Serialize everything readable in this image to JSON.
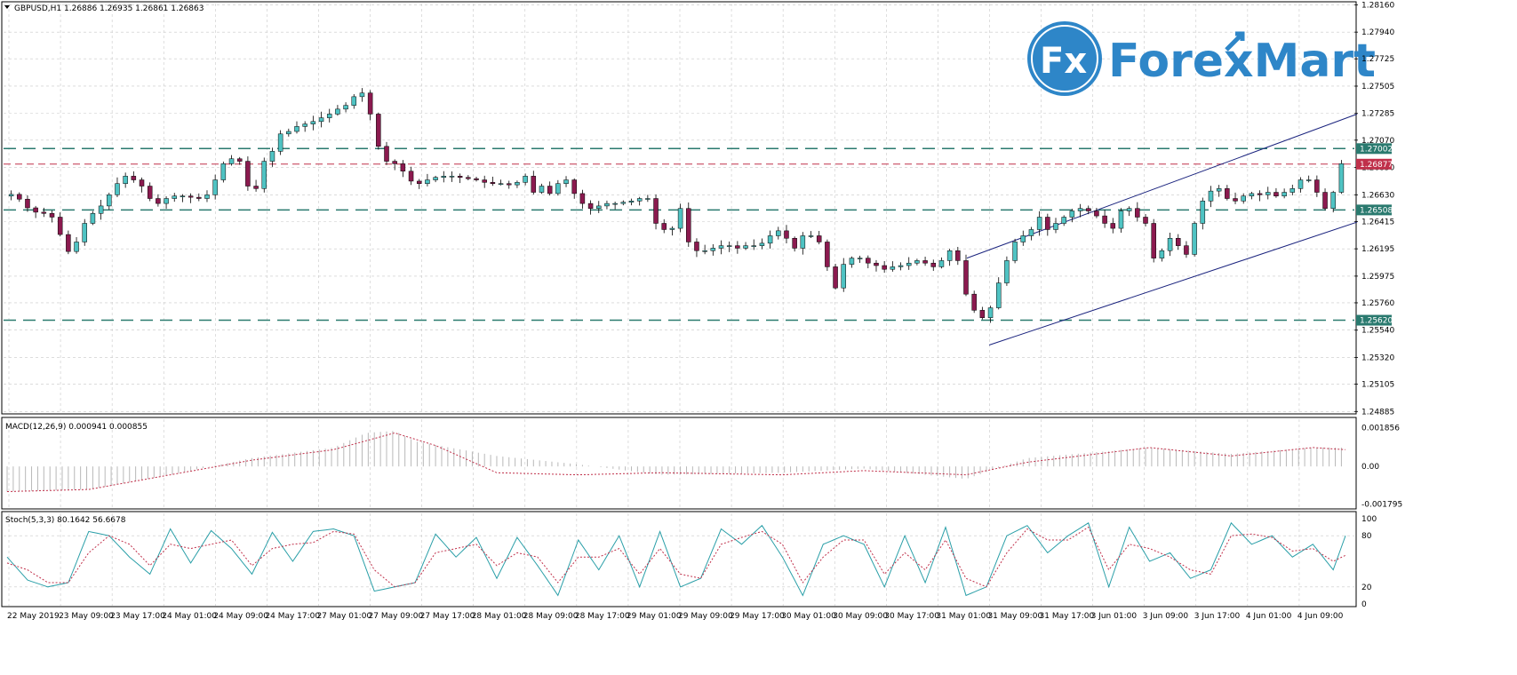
{
  "header": {
    "symbol_info": "GBPUSD,H1  1.26886 1.26935 1.26861 1.26863",
    "collapse_icon": "triangle-down-icon"
  },
  "logo": {
    "mark": "Fx",
    "text": "ForexMart",
    "color": "#2e86c8"
  },
  "colors": {
    "bull": "#4fc3c3",
    "bear": "#8b1a4f",
    "support_line": "#2a7a6f",
    "bid_line": "#c0304a",
    "channel": "#1a237e",
    "grid": "#c8c8c8",
    "macd_signal": "#c0304a",
    "stoch_main": "#2a9fa8",
    "stoch_signal": "#c0304a"
  },
  "price_axis": {
    "ticks": [
      "1.28160",
      "1.27940",
      "1.27725",
      "1.27505",
      "1.27285",
      "1.27070",
      "1.26850",
      "1.26630",
      "1.26415",
      "1.26195",
      "1.25975",
      "1.25760",
      "1.25540",
      "1.25320",
      "1.25105",
      "1.24885"
    ],
    "tags": [
      {
        "label": "1.27002",
        "kind": "support"
      },
      {
        "label": "1.26877",
        "kind": "bid"
      },
      {
        "label": "1.26508",
        "kind": "support"
      },
      {
        "label": "1.25620",
        "kind": "support"
      }
    ]
  },
  "macd_panel": {
    "label": "MACD(12,26,9) 0.000941 0.000855",
    "ticks": [
      "0.001856",
      "0.00",
      "-0.001795"
    ]
  },
  "stoch_panel": {
    "label": "Stoch(5,3,3) 80.1642 56.6678",
    "ticks": [
      "100",
      "80",
      "20",
      "0"
    ]
  },
  "time_axis": [
    "22 May 2019",
    "23 May 09:00",
    "23 May 17:00",
    "24 May 01:00",
    "24 May 09:00",
    "24 May 17:00",
    "27 May 01:00",
    "27 May 09:00",
    "27 May 17:00",
    "28 May 01:00",
    "28 May 09:00",
    "28 May 17:00",
    "29 May 01:00",
    "29 May 09:00",
    "29 May 17:00",
    "30 May 01:00",
    "30 May 09:00",
    "30 May 17:00",
    "31 May 01:00",
    "31 May 09:00",
    "31 May 17:00",
    "3 Jun 01:00",
    "3 Jun 09:00",
    "3 Jun 17:00",
    "4 Jun 01:00",
    "4 Jun 09:00"
  ],
  "chart_data": {
    "type": "candlestick",
    "title": "GBPUSD,H1",
    "ylim": [
      1.2488,
      1.2817
    ],
    "horizontal_levels": [
      1.27002,
      1.26877,
      1.26508,
      1.2562
    ],
    "channel": {
      "upper": [
        [
          1088,
          1.2612
        ],
        [
          1527,
          1.2728
        ]
      ],
      "lower": [
        [
          1113,
          1.2542
        ],
        [
          1527,
          1.2641
        ]
      ]
    },
    "close_path": [
      [
        0,
        1.2662
      ],
      [
        6,
        1.2664
      ],
      [
        10,
        1.2655
      ],
      [
        14,
        1.265
      ],
      [
        18,
        1.2648
      ],
      [
        22,
        1.2648
      ],
      [
        26,
        1.2642
      ],
      [
        30,
        1.262
      ],
      [
        33,
        1.2616
      ],
      [
        36,
        1.2625
      ],
      [
        40,
        1.264
      ],
      [
        44,
        1.2648
      ],
      [
        48,
        1.2654
      ],
      [
        52,
        1.2663
      ],
      [
        56,
        1.2672
      ],
      [
        60,
        1.2678
      ],
      [
        64,
        1.2675
      ],
      [
        68,
        1.267
      ],
      [
        72,
        1.266
      ],
      [
        76,
        1.2656
      ],
      [
        80,
        1.266
      ],
      [
        84,
        1.2662
      ],
      [
        88,
        1.2662
      ],
      [
        92,
        1.2661
      ],
      [
        96,
        1.266
      ],
      [
        100,
        1.2663
      ],
      [
        104,
        1.2675
      ],
      [
        108,
        1.2688
      ],
      [
        112,
        1.2692
      ],
      [
        116,
        1.269
      ],
      [
        120,
        1.267
      ],
      [
        124,
        1.2668
      ],
      [
        128,
        1.269
      ],
      [
        132,
        1.2698
      ],
      [
        136,
        1.2712
      ],
      [
        140,
        1.2714
      ],
      [
        144,
        1.2718
      ],
      [
        148,
        1.272
      ],
      [
        152,
        1.2722
      ],
      [
        156,
        1.2725
      ],
      [
        160,
        1.2728
      ],
      [
        164,
        1.2732
      ],
      [
        168,
        1.2735
      ],
      [
        172,
        1.2742
      ],
      [
        176,
        1.2745
      ],
      [
        180,
        1.2728
      ],
      [
        184,
        1.2702
      ],
      [
        188,
        1.269
      ],
      [
        192,
        1.2688
      ],
      [
        196,
        1.2682
      ],
      [
        200,
        1.2674
      ],
      [
        204,
        1.2672
      ],
      [
        208,
        1.2675
      ],
      [
        212,
        1.2677
      ],
      [
        216,
        1.2678
      ],
      [
        220,
        1.2678
      ],
      [
        224,
        1.2677
      ],
      [
        228,
        1.2676
      ],
      [
        232,
        1.2675
      ],
      [
        236,
        1.2673
      ],
      [
        240,
        1.2672
      ],
      [
        244,
        1.2672
      ],
      [
        248,
        1.2671
      ],
      [
        252,
        1.2673
      ],
      [
        256,
        1.2678
      ],
      [
        260,
        1.2665
      ],
      [
        264,
        1.267
      ],
      [
        268,
        1.2664
      ],
      [
        272,
        1.2672
      ],
      [
        276,
        1.2675
      ],
      [
        280,
        1.2664
      ],
      [
        284,
        1.2656
      ],
      [
        288,
        1.2652
      ],
      [
        292,
        1.2654
      ],
      [
        296,
        1.2656
      ],
      [
        300,
        1.2656
      ],
      [
        304,
        1.2657
      ],
      [
        308,
        1.2658
      ],
      [
        312,
        1.266
      ],
      [
        316,
        1.266
      ],
      [
        320,
        1.264
      ],
      [
        324,
        1.2635
      ],
      [
        328,
        1.2636
      ],
      [
        332,
        1.2652
      ],
      [
        336,
        1.2625
      ],
      [
        340,
        1.2618
      ],
      [
        344,
        1.2618
      ],
      [
        348,
        1.262
      ],
      [
        352,
        1.2622
      ],
      [
        356,
        1.2622
      ],
      [
        360,
        1.262
      ],
      [
        364,
        1.2622
      ],
      [
        368,
        1.2622
      ],
      [
        372,
        1.2624
      ],
      [
        376,
        1.263
      ],
      [
        380,
        1.2634
      ],
      [
        384,
        1.2628
      ],
      [
        388,
        1.262
      ],
      [
        392,
        1.263
      ],
      [
        396,
        1.263
      ],
      [
        400,
        1.2625
      ],
      [
        404,
        1.2605
      ],
      [
        408,
        1.2588
      ],
      [
        412,
        1.2607
      ],
      [
        416,
        1.2612
      ],
      [
        420,
        1.2612
      ],
      [
        424,
        1.2608
      ],
      [
        428,
        1.2606
      ],
      [
        432,
        1.2603
      ],
      [
        436,
        1.2605
      ],
      [
        440,
        1.2606
      ],
      [
        444,
        1.2608
      ],
      [
        448,
        1.261
      ],
      [
        452,
        1.2608
      ],
      [
        456,
        1.2605
      ],
      [
        460,
        1.261
      ],
      [
        464,
        1.2618
      ],
      [
        468,
        1.261
      ],
      [
        472,
        1.2583
      ],
      [
        476,
        1.257
      ],
      [
        480,
        1.2564
      ],
      [
        484,
        1.2572
      ],
      [
        488,
        1.2592
      ],
      [
        492,
        1.261
      ],
      [
        496,
        1.2625
      ],
      [
        500,
        1.263
      ],
      [
        504,
        1.2635
      ],
      [
        508,
        1.2645
      ],
      [
        512,
        1.2635
      ],
      [
        516,
        1.264
      ],
      [
        520,
        1.2645
      ],
      [
        524,
        1.265
      ],
      [
        528,
        1.2652
      ],
      [
        532,
        1.265
      ],
      [
        536,
        1.2646
      ],
      [
        540,
        1.264
      ],
      [
        544,
        1.2636
      ],
      [
        548,
        1.265
      ],
      [
        552,
        1.2652
      ],
      [
        556,
        1.2645
      ],
      [
        560,
        1.264
      ],
      [
        564,
        1.2612
      ],
      [
        568,
        1.2618
      ],
      [
        572,
        1.2628
      ],
      [
        576,
        1.2622
      ],
      [
        580,
        1.2615
      ],
      [
        584,
        1.264
      ],
      [
        588,
        1.2658
      ],
      [
        592,
        1.2666
      ],
      [
        596,
        1.2668
      ],
      [
        600,
        1.266
      ],
      [
        604,
        1.2658
      ],
      [
        608,
        1.2662
      ],
      [
        612,
        1.2664
      ],
      [
        616,
        1.2663
      ],
      [
        620,
        1.2665
      ],
      [
        624,
        1.2662
      ],
      [
        628,
        1.2665
      ],
      [
        632,
        1.2668
      ],
      [
        636,
        1.2675
      ],
      [
        640,
        1.2675
      ],
      [
        644,
        1.2665
      ],
      [
        648,
        1.2652
      ],
      [
        652,
        1.2665
      ],
      [
        656,
        1.2688
      ]
    ],
    "macd_path": [
      [
        0,
        -0.0012
      ],
      [
        40,
        -0.0011
      ],
      [
        80,
        -0.0004
      ],
      [
        120,
        0.0004
      ],
      [
        160,
        0.0009
      ],
      [
        176,
        0.0016
      ],
      [
        190,
        0.0017
      ],
      [
        200,
        0.0012
      ],
      [
        240,
        0.0005
      ],
      [
        280,
        0.0001
      ],
      [
        320,
        -0.0004
      ],
      [
        380,
        -0.0003
      ],
      [
        420,
        -0.0001
      ],
      [
        470,
        -0.0006
      ],
      [
        500,
        0.0004
      ],
      [
        560,
        0.0009
      ],
      [
        600,
        0.0006
      ],
      [
        640,
        0.0009
      ],
      [
        656,
        0.0009
      ]
    ],
    "macd_signal_path": [
      [
        0,
        -0.0012
      ],
      [
        40,
        -0.0011
      ],
      [
        80,
        -0.0004
      ],
      [
        120,
        0.0003
      ],
      [
        160,
        0.0008
      ],
      [
        190,
        0.0016
      ],
      [
        210,
        0.001
      ],
      [
        240,
        -0.0003
      ],
      [
        280,
        -0.0004
      ],
      [
        320,
        -0.0003
      ],
      [
        380,
        -0.0004
      ],
      [
        420,
        -0.0002
      ],
      [
        470,
        -0.0004
      ],
      [
        500,
        0.0002
      ],
      [
        560,
        0.0009
      ],
      [
        600,
        0.0005
      ],
      [
        640,
        0.0009
      ],
      [
        656,
        0.0008
      ]
    ],
    "stoch_main_path": [
      [
        0,
        55
      ],
      [
        10,
        28
      ],
      [
        20,
        20
      ],
      [
        30,
        25
      ],
      [
        40,
        85
      ],
      [
        50,
        80
      ],
      [
        60,
        55
      ],
      [
        70,
        35
      ],
      [
        80,
        88
      ],
      [
        90,
        48
      ],
      [
        100,
        86
      ],
      [
        110,
        65
      ],
      [
        120,
        35
      ],
      [
        130,
        84
      ],
      [
        140,
        50
      ],
      [
        150,
        85
      ],
      [
        160,
        88
      ],
      [
        170,
        80
      ],
      [
        180,
        15
      ],
      [
        190,
        20
      ],
      [
        200,
        25
      ],
      [
        210,
        82
      ],
      [
        220,
        55
      ],
      [
        230,
        78
      ],
      [
        240,
        30
      ],
      [
        250,
        78
      ],
      [
        260,
        45
      ],
      [
        270,
        10
      ],
      [
        280,
        75
      ],
      [
        290,
        40
      ],
      [
        300,
        80
      ],
      [
        310,
        20
      ],
      [
        320,
        85
      ],
      [
        330,
        20
      ],
      [
        340,
        30
      ],
      [
        350,
        88
      ],
      [
        360,
        70
      ],
      [
        370,
        92
      ],
      [
        380,
        55
      ],
      [
        390,
        10
      ],
      [
        400,
        70
      ],
      [
        410,
        80
      ],
      [
        420,
        70
      ],
      [
        430,
        20
      ],
      [
        440,
        80
      ],
      [
        450,
        25
      ],
      [
        460,
        90
      ],
      [
        470,
        10
      ],
      [
        480,
        20
      ],
      [
        490,
        80
      ],
      [
        500,
        92
      ],
      [
        510,
        60
      ],
      [
        520,
        80
      ],
      [
        530,
        95
      ],
      [
        540,
        20
      ],
      [
        550,
        90
      ],
      [
        560,
        50
      ],
      [
        570,
        60
      ],
      [
        580,
        30
      ],
      [
        590,
        40
      ],
      [
        600,
        95
      ],
      [
        610,
        70
      ],
      [
        620,
        80
      ],
      [
        630,
        55
      ],
      [
        640,
        70
      ],
      [
        650,
        40
      ],
      [
        656,
        80
      ]
    ],
    "stoch_signal_path": [
      [
        0,
        48
      ],
      [
        10,
        40
      ],
      [
        20,
        25
      ],
      [
        30,
        25
      ],
      [
        40,
        60
      ],
      [
        50,
        80
      ],
      [
        60,
        70
      ],
      [
        70,
        45
      ],
      [
        80,
        70
      ],
      [
        90,
        65
      ],
      [
        100,
        70
      ],
      [
        110,
        75
      ],
      [
        120,
        45
      ],
      [
        130,
        65
      ],
      [
        140,
        70
      ],
      [
        150,
        72
      ],
      [
        160,
        85
      ],
      [
        170,
        82
      ],
      [
        180,
        40
      ],
      [
        190,
        20
      ],
      [
        200,
        25
      ],
      [
        210,
        60
      ],
      [
        220,
        65
      ],
      [
        230,
        70
      ],
      [
        240,
        45
      ],
      [
        250,
        60
      ],
      [
        260,
        55
      ],
      [
        270,
        25
      ],
      [
        280,
        55
      ],
      [
        290,
        55
      ],
      [
        300,
        65
      ],
      [
        310,
        35
      ],
      [
        320,
        65
      ],
      [
        330,
        35
      ],
      [
        340,
        30
      ],
      [
        350,
        70
      ],
      [
        360,
        78
      ],
      [
        370,
        85
      ],
      [
        380,
        70
      ],
      [
        390,
        25
      ],
      [
        400,
        55
      ],
      [
        410,
        75
      ],
      [
        420,
        75
      ],
      [
        430,
        35
      ],
      [
        440,
        60
      ],
      [
        450,
        40
      ],
      [
        460,
        75
      ],
      [
        470,
        30
      ],
      [
        480,
        20
      ],
      [
        490,
        60
      ],
      [
        500,
        88
      ],
      [
        510,
        75
      ],
      [
        520,
        75
      ],
      [
        530,
        90
      ],
      [
        540,
        40
      ],
      [
        550,
        70
      ],
      [
        560,
        65
      ],
      [
        570,
        55
      ],
      [
        580,
        40
      ],
      [
        590,
        35
      ],
      [
        600,
        80
      ],
      [
        610,
        82
      ],
      [
        620,
        78
      ],
      [
        630,
        62
      ],
      [
        640,
        65
      ],
      [
        650,
        50
      ],
      [
        656,
        57
      ]
    ]
  }
}
